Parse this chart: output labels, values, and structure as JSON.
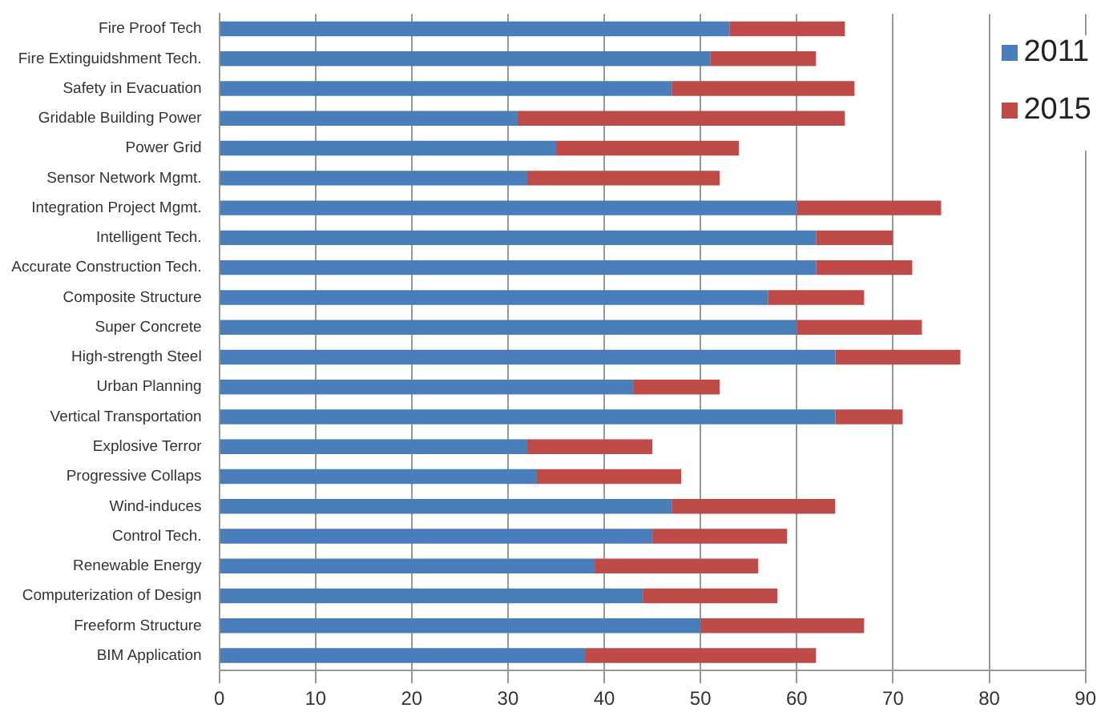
{
  "chart_data": {
    "type": "bar",
    "orientation": "horizontal",
    "stacked": true,
    "categories": [
      "Fire Proof Tech",
      "Fire Extinguidshment Tech.",
      "Safety in Evacuation",
      "Gridable Building Power",
      "Power Grid",
      "Sensor Network Mgmt.",
      "Integration Project Mgmt.",
      "Intelligent Tech.",
      "Accurate Construction Tech.",
      "Composite Structure",
      "Super Concrete",
      "High-strength Steel",
      "Urban Planning",
      "Vertical Transportation",
      "Explosive Terror",
      "Progressive Collaps",
      "Wind-induces",
      "Control Tech.",
      "Renewable Energy",
      "Computerization of Design",
      "Freeform Structure",
      "BIM Application"
    ],
    "series": [
      {
        "name": "2011",
        "color": "#4a7ebb",
        "values": [
          53,
          51,
          47,
          31,
          35,
          32,
          60,
          62,
          62,
          57,
          60,
          64,
          43,
          64,
          32,
          33,
          47,
          45,
          39,
          44,
          50,
          38
        ]
      },
      {
        "name": "2015",
        "color": "#be4b48",
        "values": [
          12,
          11,
          19,
          34,
          19,
          20,
          15,
          8,
          10,
          10,
          13,
          13,
          9,
          7,
          13,
          15,
          17,
          14,
          17,
          14,
          17,
          24
        ]
      }
    ],
    "xlim": [
      0,
      90
    ],
    "xticks": [
      0,
      10,
      20,
      30,
      40,
      50,
      60,
      70,
      80,
      90
    ],
    "grid": "x",
    "legend": "top right"
  }
}
